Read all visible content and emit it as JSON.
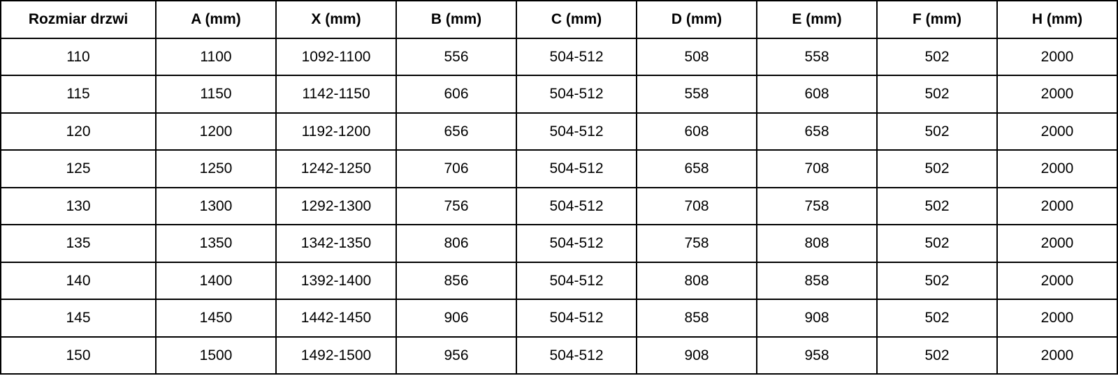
{
  "table": {
    "name": "door-dimensions-table",
    "columns": [
      "Rozmiar drzwi",
      "A (mm)",
      "X (mm)",
      "B (mm)",
      "C (mm)",
      "D (mm)",
      "E (mm)",
      "F (mm)",
      "H (mm)"
    ],
    "rows": [
      [
        "110",
        "1100",
        "1092-1100",
        "556",
        "504-512",
        "508",
        "558",
        "502",
        "2000"
      ],
      [
        "115",
        "1150",
        "1142-1150",
        "606",
        "504-512",
        "558",
        "608",
        "502",
        "2000"
      ],
      [
        "120",
        "1200",
        "1192-1200",
        "656",
        "504-512",
        "608",
        "658",
        "502",
        "2000"
      ],
      [
        "125",
        "1250",
        "1242-1250",
        "706",
        "504-512",
        "658",
        "708",
        "502",
        "2000"
      ],
      [
        "130",
        "1300",
        "1292-1300",
        "756",
        "504-512",
        "708",
        "758",
        "502",
        "2000"
      ],
      [
        "135",
        "1350",
        "1342-1350",
        "806",
        "504-512",
        "758",
        "808",
        "502",
        "2000"
      ],
      [
        "140",
        "1400",
        "1392-1400",
        "856",
        "504-512",
        "808",
        "858",
        "502",
        "2000"
      ],
      [
        "145",
        "1450",
        "1442-1450",
        "906",
        "504-512",
        "858",
        "908",
        "502",
        "2000"
      ],
      [
        "150",
        "1500",
        "1492-1500",
        "956",
        "504-512",
        "908",
        "958",
        "502",
        "2000"
      ]
    ]
  },
  "colors": {
    "border": "#000000",
    "text": "#000000",
    "background": "#ffffff"
  }
}
